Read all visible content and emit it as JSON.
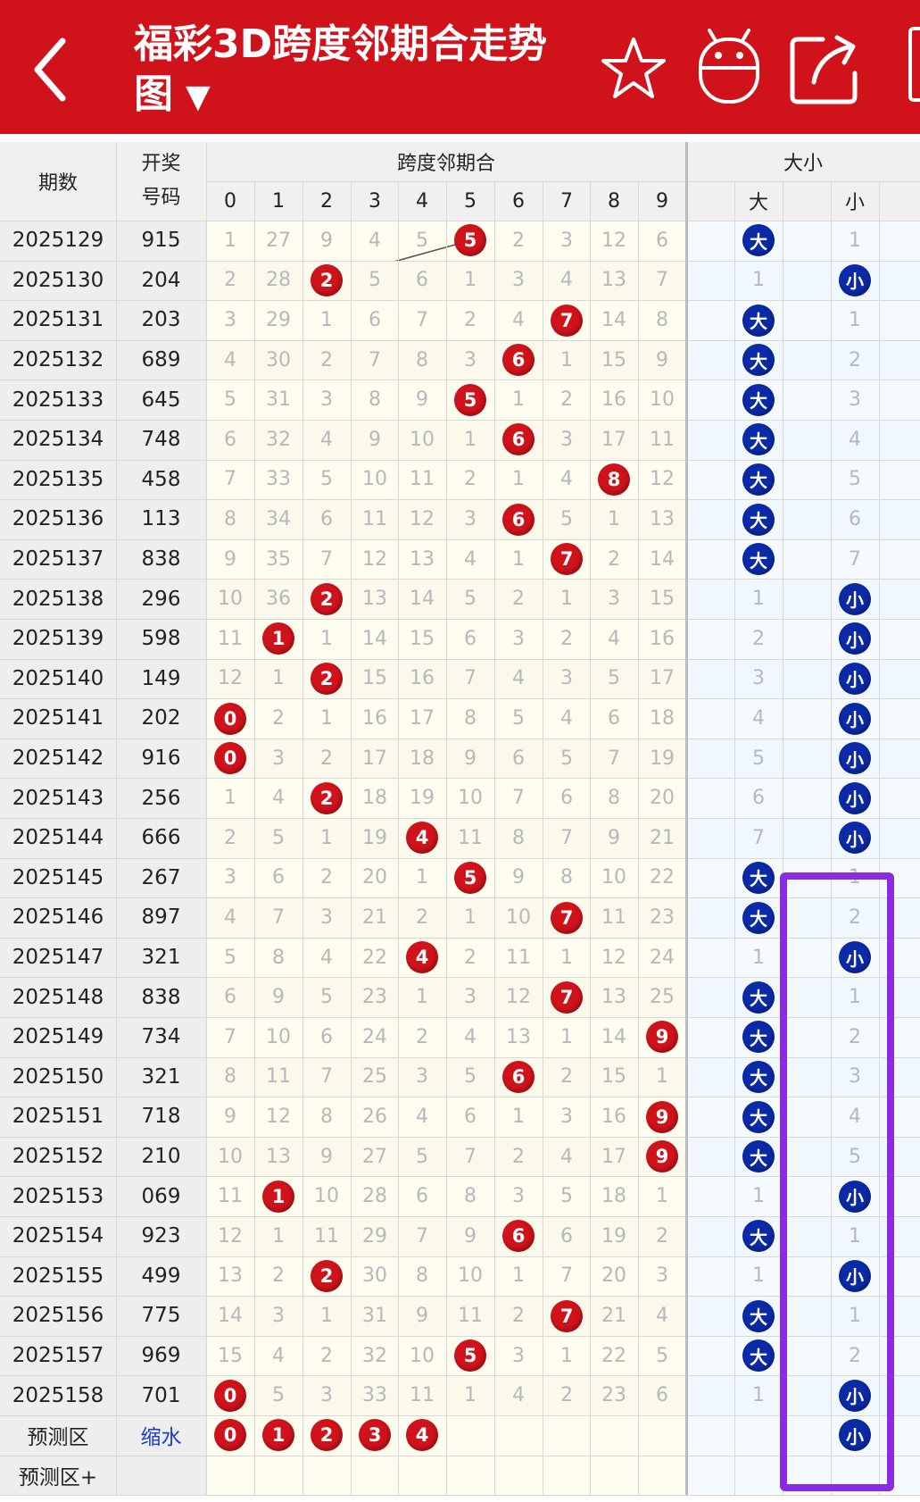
{
  "header": {
    "title": "福彩3D跨度邻期合走势图",
    "caret": "▼",
    "back_icon": "back-arrow-icon",
    "icons": [
      "star-icon",
      "robot-icon",
      "share-icon"
    ],
    "bg_color": "#d0121b"
  },
  "table": {
    "col_issue": "期数",
    "col_draw_line1": "开奖",
    "col_draw_line2": "号码",
    "group_span": "跨度邻期合",
    "group_size": "大小",
    "digits": [
      "0",
      "1",
      "2",
      "3",
      "4",
      "5",
      "6",
      "7",
      "8",
      "9"
    ],
    "size_big": "大",
    "size_small": "小",
    "rows": [
      {
        "issue": "2025129",
        "draw": "915",
        "vals": [
          1,
          27,
          9,
          4,
          5,
          5,
          2,
          3,
          12,
          6
        ],
        "hit": 5,
        "big": "大",
        "small": "1",
        "bs": "big"
      },
      {
        "issue": "2025130",
        "draw": "204",
        "vals": [
          2,
          28,
          2,
          5,
          6,
          1,
          3,
          4,
          13,
          7
        ],
        "hit": 2,
        "big": "1",
        "small": "小",
        "bs": "small"
      },
      {
        "issue": "2025131",
        "draw": "203",
        "vals": [
          3,
          29,
          1,
          6,
          7,
          2,
          4,
          7,
          14,
          8
        ],
        "hit": 7,
        "big": "大",
        "small": "1",
        "bs": "big"
      },
      {
        "issue": "2025132",
        "draw": "689",
        "vals": [
          4,
          30,
          2,
          7,
          8,
          3,
          6,
          1,
          15,
          9
        ],
        "hit": 6,
        "big": "大",
        "small": "2",
        "bs": "big"
      },
      {
        "issue": "2025133",
        "draw": "645",
        "vals": [
          5,
          31,
          3,
          8,
          9,
          5,
          1,
          2,
          16,
          10
        ],
        "hit": 5,
        "big": "大",
        "small": "3",
        "bs": "big"
      },
      {
        "issue": "2025134",
        "draw": "748",
        "vals": [
          6,
          32,
          4,
          9,
          10,
          1,
          6,
          3,
          17,
          11
        ],
        "hit": 6,
        "big": "大",
        "small": "4",
        "bs": "big"
      },
      {
        "issue": "2025135",
        "draw": "458",
        "vals": [
          7,
          33,
          5,
          10,
          11,
          2,
          1,
          4,
          8,
          12
        ],
        "hit": 8,
        "big": "大",
        "small": "5",
        "bs": "big"
      },
      {
        "issue": "2025136",
        "draw": "113",
        "vals": [
          8,
          34,
          6,
          11,
          12,
          3,
          6,
          5,
          1,
          13
        ],
        "hit": 6,
        "big": "大",
        "small": "6",
        "bs": "big"
      },
      {
        "issue": "2025137",
        "draw": "838",
        "vals": [
          9,
          35,
          7,
          12,
          13,
          4,
          1,
          7,
          2,
          14
        ],
        "hit": 7,
        "big": "大",
        "small": "7",
        "bs": "big"
      },
      {
        "issue": "2025138",
        "draw": "296",
        "vals": [
          10,
          36,
          2,
          13,
          14,
          5,
          2,
          1,
          3,
          15
        ],
        "hit": 2,
        "big": "1",
        "small": "小",
        "bs": "small"
      },
      {
        "issue": "2025139",
        "draw": "598",
        "vals": [
          11,
          1,
          1,
          14,
          15,
          6,
          3,
          2,
          4,
          16
        ],
        "hit": 1,
        "big": "2",
        "small": "小",
        "bs": "small"
      },
      {
        "issue": "2025140",
        "draw": "149",
        "vals": [
          12,
          1,
          2,
          15,
          16,
          7,
          4,
          3,
          5,
          17
        ],
        "hit": 2,
        "big": "3",
        "small": "小",
        "bs": "small"
      },
      {
        "issue": "2025141",
        "draw": "202",
        "vals": [
          0,
          2,
          1,
          16,
          17,
          8,
          5,
          4,
          6,
          18
        ],
        "hit": 0,
        "big": "4",
        "small": "小",
        "bs": "small"
      },
      {
        "issue": "2025142",
        "draw": "916",
        "vals": [
          0,
          3,
          2,
          17,
          18,
          9,
          6,
          5,
          7,
          19
        ],
        "hit": 0,
        "big": "5",
        "small": "小",
        "bs": "small"
      },
      {
        "issue": "2025143",
        "draw": "256",
        "vals": [
          1,
          4,
          2,
          18,
          19,
          10,
          7,
          6,
          8,
          20
        ],
        "hit": 2,
        "big": "6",
        "small": "小",
        "bs": "small"
      },
      {
        "issue": "2025144",
        "draw": "666",
        "vals": [
          2,
          5,
          1,
          19,
          4,
          11,
          8,
          7,
          9,
          21
        ],
        "hit": 4,
        "big": "7",
        "small": "小",
        "bs": "small"
      },
      {
        "issue": "2025145",
        "draw": "267",
        "vals": [
          3,
          6,
          2,
          20,
          1,
          5,
          9,
          8,
          10,
          22
        ],
        "hit": 5,
        "big": "大",
        "small": "1",
        "bs": "big"
      },
      {
        "issue": "2025146",
        "draw": "897",
        "vals": [
          4,
          7,
          3,
          21,
          2,
          1,
          10,
          7,
          11,
          23
        ],
        "hit": 7,
        "big": "大",
        "small": "2",
        "bs": "big"
      },
      {
        "issue": "2025147",
        "draw": "321",
        "vals": [
          5,
          8,
          4,
          22,
          4,
          2,
          11,
          1,
          12,
          24
        ],
        "hit": 4,
        "big": "1",
        "small": "小",
        "bs": "small"
      },
      {
        "issue": "2025148",
        "draw": "838",
        "vals": [
          6,
          9,
          5,
          23,
          1,
          3,
          12,
          7,
          13,
          25
        ],
        "hit": 7,
        "big": "大",
        "small": "1",
        "bs": "big"
      },
      {
        "issue": "2025149",
        "draw": "734",
        "vals": [
          7,
          10,
          6,
          24,
          2,
          4,
          13,
          1,
          14,
          9
        ],
        "hit": 9,
        "big": "大",
        "small": "2",
        "bs": "big"
      },
      {
        "issue": "2025150",
        "draw": "321",
        "vals": [
          8,
          11,
          7,
          25,
          3,
          5,
          6,
          2,
          15,
          1
        ],
        "hit": 6,
        "big": "大",
        "small": "3",
        "bs": "big"
      },
      {
        "issue": "2025151",
        "draw": "718",
        "vals": [
          9,
          12,
          8,
          26,
          4,
          6,
          1,
          3,
          16,
          9
        ],
        "hit": 9,
        "big": "大",
        "small": "4",
        "bs": "big"
      },
      {
        "issue": "2025152",
        "draw": "210",
        "vals": [
          10,
          13,
          9,
          27,
          5,
          7,
          2,
          4,
          17,
          9
        ],
        "hit": 9,
        "big": "大",
        "small": "5",
        "bs": "big"
      },
      {
        "issue": "2025153",
        "draw": "069",
        "vals": [
          11,
          1,
          10,
          28,
          6,
          8,
          3,
          5,
          18,
          1
        ],
        "hit": 1,
        "big": "1",
        "small": "小",
        "bs": "small"
      },
      {
        "issue": "2025154",
        "draw": "923",
        "vals": [
          12,
          1,
          11,
          29,
          7,
          9,
          6,
          6,
          19,
          2
        ],
        "hit": 6,
        "big": "大",
        "small": "1",
        "bs": "big"
      },
      {
        "issue": "2025155",
        "draw": "499",
        "vals": [
          13,
          2,
          2,
          30,
          8,
          10,
          1,
          7,
          20,
          3
        ],
        "hit": 2,
        "big": "1",
        "small": "小",
        "bs": "small"
      },
      {
        "issue": "2025156",
        "draw": "775",
        "vals": [
          14,
          3,
          1,
          31,
          9,
          11,
          2,
          7,
          21,
          4
        ],
        "hit": 7,
        "big": "大",
        "small": "1",
        "bs": "big"
      },
      {
        "issue": "2025157",
        "draw": "969",
        "vals": [
          15,
          4,
          2,
          32,
          10,
          5,
          3,
          1,
          22,
          5
        ],
        "hit": 5,
        "big": "大",
        "small": "2",
        "bs": "big"
      },
      {
        "issue": "2025158",
        "draw": "701",
        "vals": [
          0,
          5,
          3,
          33,
          11,
          1,
          4,
          2,
          23,
          6
        ],
        "hit": 0,
        "big": "1",
        "small": "小",
        "bs": "small"
      }
    ],
    "predict_label": "预测区",
    "predict_draw": "缩水",
    "predict_balls": [
      "0",
      "1",
      "2",
      "3",
      "4"
    ],
    "predict_size": "小",
    "predict_plus_label": "预测区+"
  },
  "colors": {
    "red_ball": "#d0121b",
    "blue_ball": "#0b2aa8",
    "highlight": "#8a2be2"
  }
}
